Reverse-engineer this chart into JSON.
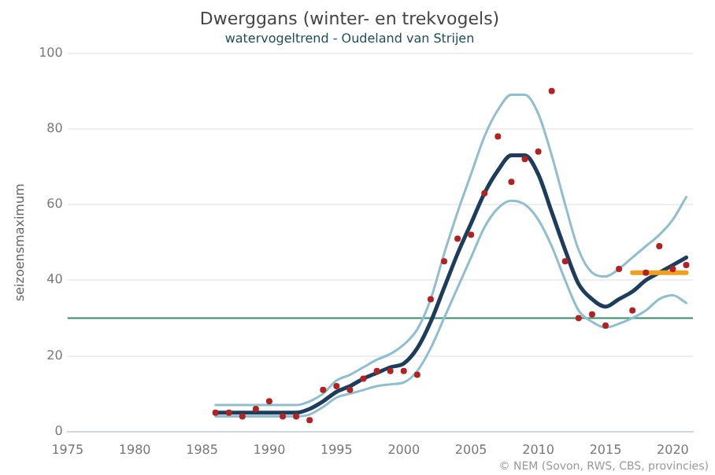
{
  "chart_data": {
    "type": "line",
    "title": "Dwerggans (winter- en trekvogels)",
    "subtitle": "watervogeltrend - Oudeland van Strijen",
    "ylabel": "seizoensmaximum",
    "xlim": [
      1975,
      2021.5
    ],
    "xticks": [
      1975,
      1980,
      1985,
      1990,
      1995,
      2000,
      2005,
      2010,
      2015,
      2020
    ],
    "ylim": [
      0,
      100
    ],
    "yticks": [
      0,
      20,
      40,
      60,
      80,
      100
    ],
    "grid": "y",
    "legend": false,
    "marker": "none",
    "x": [
      1986,
      1987,
      1988,
      1989,
      1990,
      1991,
      1992,
      1993,
      1994,
      1995,
      1996,
      1997,
      1998,
      1999,
      2000,
      2001,
      2002,
      2003,
      2004,
      2005,
      2006,
      2007,
      2008,
      2009,
      2010,
      2011,
      2012,
      2013,
      2014,
      2015,
      2016,
      2017,
      2018,
      2019,
      2020,
      2021
    ],
    "series": [
      {
        "color": "#8fbfce",
        "values": [
          7,
          7,
          7,
          7,
          7,
          7,
          7,
          8,
          10,
          13.5,
          15,
          17,
          19,
          20.5,
          23,
          27,
          35,
          47,
          58,
          68,
          78,
          85,
          89,
          89,
          84,
          73,
          60,
          48,
          42,
          41,
          43,
          46,
          49,
          52,
          56,
          62
        ]
      },
      {
        "color": "#8fbfce",
        "values": [
          4,
          4,
          4,
          4,
          4,
          4,
          4,
          4.5,
          6.5,
          9,
          10,
          11,
          12,
          12.5,
          13,
          16,
          22,
          30,
          38,
          46,
          54,
          59,
          61,
          60,
          56,
          49,
          40,
          32,
          29,
          27.5,
          28.5,
          30,
          32,
          35,
          36,
          34
        ]
      },
      {
        "color": "#1d3d5c",
        "values": [
          5,
          5,
          5,
          5,
          5,
          5,
          5,
          6,
          8,
          10.5,
          12,
          14,
          15.5,
          17,
          18,
          22,
          29,
          38,
          47,
          55,
          63,
          69,
          73,
          73,
          68,
          58,
          48,
          39,
          35,
          33,
          35,
          37,
          40,
          42,
          44,
          46
        ]
      },
      {
        "type": "scatter",
        "marker": "circle",
        "color": "#b22222",
        "values": [
          5,
          5,
          4,
          6,
          8,
          4,
          4,
          3,
          11,
          12,
          11,
          14,
          16,
          16,
          16,
          15,
          35,
          45,
          51,
          52,
          63,
          78,
          66,
          72,
          74,
          90,
          45,
          30,
          31,
          28,
          43,
          32,
          42,
          49,
          43,
          44
        ]
      },
      {
        "color": "#f0a020",
        "x": [
          2017,
          2021
        ],
        "values": [
          42,
          42
        ]
      }
    ],
    "ref_lines": [
      {
        "axis": "y",
        "value": 30,
        "color": "#3a8a6a"
      }
    ],
    "annotations": [
      "© NEM (Sovon, RWS, CBS, provincies)"
    ]
  }
}
